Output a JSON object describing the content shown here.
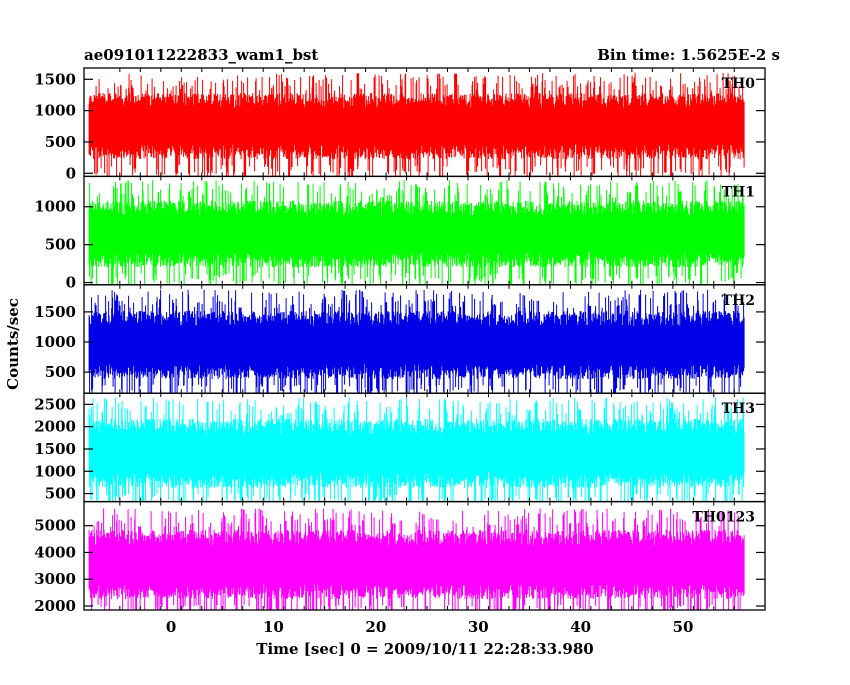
{
  "chart_data": {
    "type": "line",
    "title": "ae091011222833_wam1_bst",
    "subtitle": "Bin time: 1.5625E-2 s",
    "xlabel": "Time [sec] 0 = 2009/10/11 22:28:33.980",
    "ylabel": "Counts/sec",
    "xlim": [
      -8.5,
      58
    ],
    "x_range_data": [
      -8,
      56
    ],
    "x_ticks": [
      0,
      10,
      20,
      30,
      40,
      50
    ],
    "grid": false,
    "legend": "none",
    "panels": [
      {
        "name": "TH0",
        "color": "#ff0000",
        "ylim": [
          -50,
          1680
        ],
        "yticks": [
          0,
          500,
          1000,
          1500
        ],
        "mean": 750,
        "min": 50,
        "max": 1680
      },
      {
        "name": "TH1",
        "color": "#00ff00",
        "ylim": [
          -30,
          1400
        ],
        "yticks": [
          0,
          500,
          1000
        ],
        "mean": 640,
        "min": 40,
        "max": 1400
      },
      {
        "name": "TH2",
        "color": "#0000e6",
        "ylim": [
          150,
          1950
        ],
        "yticks": [
          500,
          1000,
          1500
        ],
        "mean": 950,
        "min": 200,
        "max": 1950
      },
      {
        "name": "TH3",
        "color": "#00ffff",
        "ylim": [
          320,
          2750
        ],
        "yticks": [
          500,
          1000,
          1500,
          2000,
          2500
        ],
        "mean": 1400,
        "min": 350,
        "max": 2750
      },
      {
        "name": "TH0123",
        "color": "#ff00ff",
        "ylim": [
          1850,
          5900
        ],
        "yticks": [
          2000,
          3000,
          4000,
          5000
        ],
        "mean": 3550,
        "min": 1900,
        "max": 5900
      }
    ]
  }
}
